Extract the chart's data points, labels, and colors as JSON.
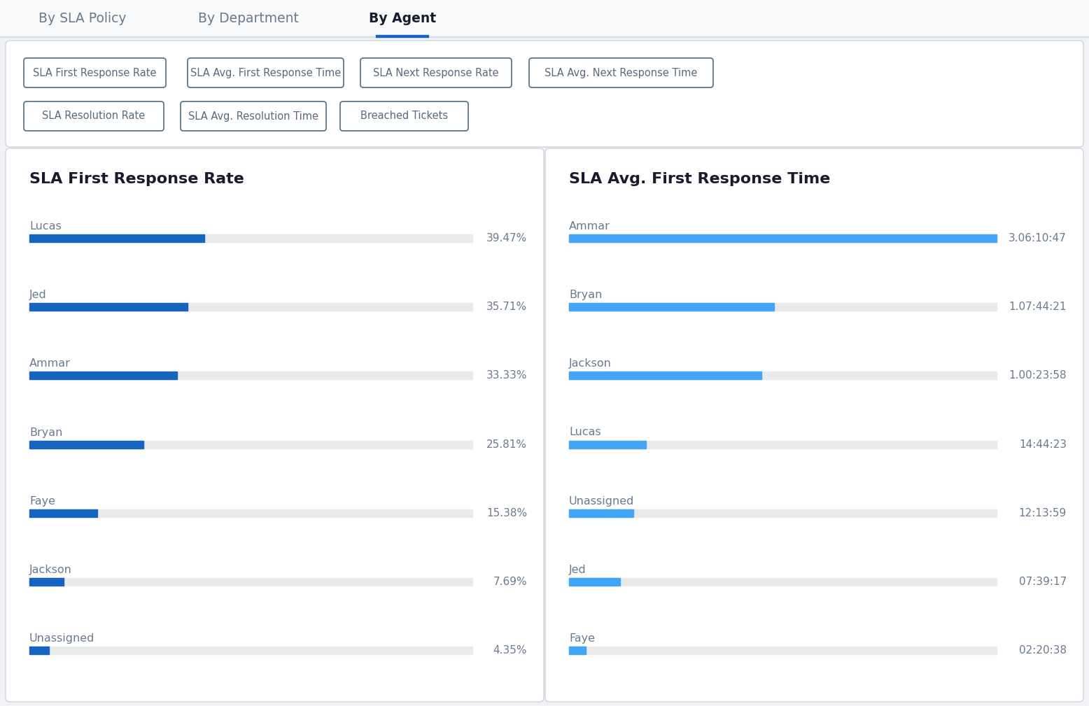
{
  "tab_labels": [
    "By SLA Policy",
    "By Department",
    "By Agent"
  ],
  "active_tab": "By Agent",
  "filter_buttons": [
    "SLA First Response Rate",
    "SLA Avg. First Response Time",
    "SLA Next Response Rate",
    "SLA Avg. Next Response Time",
    "SLA Resolution Rate",
    "SLA Avg. Resolution Time",
    "Breached Tickets"
  ],
  "chart1_title": "SLA First Response Rate",
  "chart1_agents": [
    "Lucas",
    "Jed",
    "Ammar",
    "Bryan",
    "Faye",
    "Jackson",
    "Unassigned"
  ],
  "chart1_values": [
    39.47,
    35.71,
    33.33,
    25.81,
    15.38,
    7.69,
    4.35
  ],
  "chart1_labels": [
    "39.47%",
    "35.71%",
    "33.33%",
    "25.81%",
    "15.38%",
    "7.69%",
    "4.35%"
  ],
  "chart1_bar_color": "#1565C0",
  "chart1_bg_color": "#e9eaec",
  "chart2_title": "SLA Avg. First Response Time",
  "chart2_agents": [
    "Ammar",
    "Bryan",
    "Jackson",
    "Lucas",
    "Unassigned",
    "Jed",
    "Faye"
  ],
  "chart2_labels": [
    "3.06:10:47",
    "1.07:44:21",
    "1.00:23:58",
    "14:44:23",
    "12:13:59",
    "07:39:17",
    "02:20:38"
  ],
  "chart2_values": [
    100,
    48,
    45,
    18,
    15,
    12,
    4
  ],
  "chart2_bar_color": "#42A5F5",
  "chart2_bg_color": "#e9eaec",
  "bg_color": "#f0f2f5",
  "card_color": "#ffffff",
  "tab_bar_color": "#f8f9fa",
  "tab_underline_color": "#1565C0",
  "tab_active_color": "#1a1a2e",
  "tab_inactive_color": "#6b7a8d",
  "label_color": "#6b7a8d",
  "value_color": "#6b7a8d",
  "title_color": "#1a1a2e",
  "filter_border_color": "#6b7a8d",
  "filter_text_color": "#5a6a7a",
  "tab_border_color": "#d8dde6"
}
